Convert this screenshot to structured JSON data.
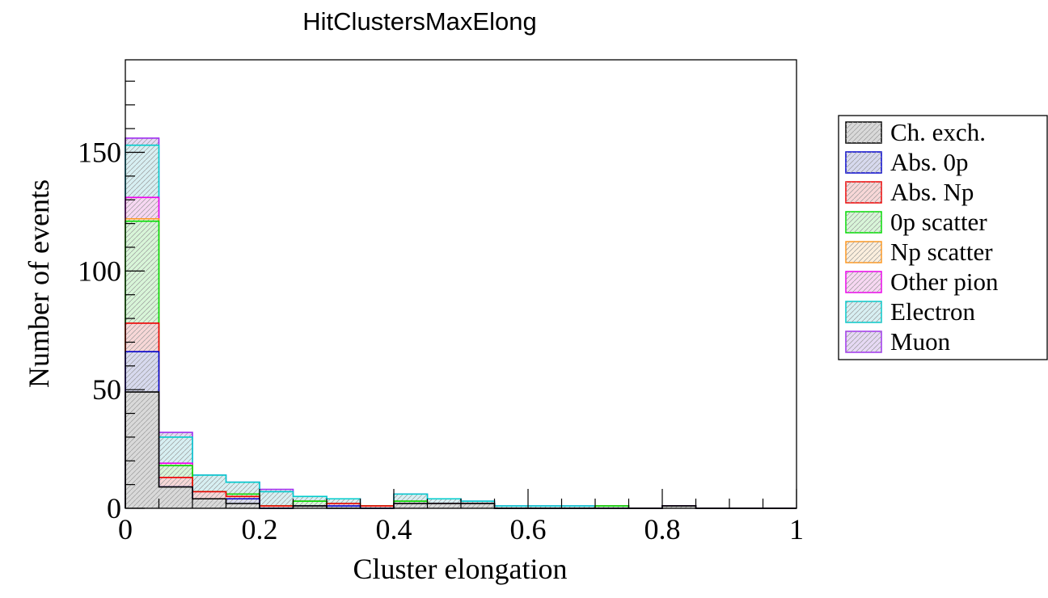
{
  "chart_data": {
    "type": "bar",
    "histogram": "stacked",
    "title": "HitClustersMaxElong",
    "xlabel": "Cluster elongation",
    "ylabel": "Number of events",
    "xlim": [
      0,
      1
    ],
    "ylim": [
      0,
      189
    ],
    "x_ticks": [
      "0",
      "0.2",
      "0.4",
      "0.6",
      "0.8",
      "1"
    ],
    "y_ticks": [
      "0",
      "50",
      "100",
      "150"
    ],
    "bin_edges": [
      0,
      0.05,
      0.1,
      0.15,
      0.2,
      0.25,
      0.3,
      0.35,
      0.4,
      0.45,
      0.5,
      0.55,
      0.6,
      0.65,
      0.7,
      0.75,
      0.8,
      0.85,
      0.9,
      0.95,
      1.0
    ],
    "legend_position": "right",
    "series": [
      {
        "name": "Ch. exch.",
        "color": "#000000",
        "fill": "#d9d9d9",
        "values": [
          49,
          9,
          4,
          2,
          0,
          1,
          0,
          0,
          2,
          2,
          2,
          0,
          0,
          0,
          0,
          0,
          1,
          0,
          0,
          0
        ]
      },
      {
        "name": "Abs. 0p",
        "color": "#0000cc",
        "fill": "#d7d9ee",
        "values": [
          17,
          0,
          0,
          2,
          0,
          0,
          1,
          0,
          0,
          0,
          0,
          0,
          0,
          0,
          0,
          0,
          0,
          0,
          0,
          0
        ]
      },
      {
        "name": "Abs. Np",
        "color": "#ee0000",
        "fill": "#f7d7d7",
        "values": [
          12,
          4,
          3,
          1,
          1,
          0,
          1,
          1,
          0,
          0,
          0,
          0,
          0,
          0,
          0,
          0,
          0,
          0,
          0,
          0
        ]
      },
      {
        "name": "0p scatter",
        "color": "#00dd00",
        "fill": "#d8f5d8",
        "values": [
          43,
          5,
          0,
          1,
          0,
          2,
          0,
          0,
          1,
          0,
          0,
          0,
          0,
          0,
          1,
          0,
          0,
          0,
          0,
          0
        ]
      },
      {
        "name": "Np scatter",
        "color": "#ff9922",
        "fill": "#fbeedd",
        "values": [
          1,
          0,
          0,
          0,
          0,
          0,
          0,
          0,
          0,
          0,
          0,
          0,
          0,
          0,
          0,
          0,
          0,
          0,
          0,
          0
        ]
      },
      {
        "name": "Other pion",
        "color": "#ee00ee",
        "fill": "#f7d7f2",
        "values": [
          9,
          1,
          0,
          0,
          0,
          0,
          0,
          0,
          0,
          0,
          0,
          0,
          0,
          0,
          0,
          0,
          0,
          0,
          0,
          0
        ]
      },
      {
        "name": "Electron",
        "color": "#00cccc",
        "fill": "#d7eff2",
        "values": [
          22,
          11,
          7,
          5,
          6,
          2,
          2,
          0,
          3,
          2,
          1,
          1,
          1,
          1,
          0,
          0,
          0,
          0,
          0,
          0
        ]
      },
      {
        "name": "Muon",
        "color": "#a030f0",
        "fill": "#e6d9f4",
        "values": [
          3,
          2,
          0,
          0,
          1,
          0,
          0,
          0,
          0,
          0,
          0,
          0,
          0,
          0,
          0,
          0,
          0,
          0,
          0,
          0
        ]
      }
    ]
  }
}
